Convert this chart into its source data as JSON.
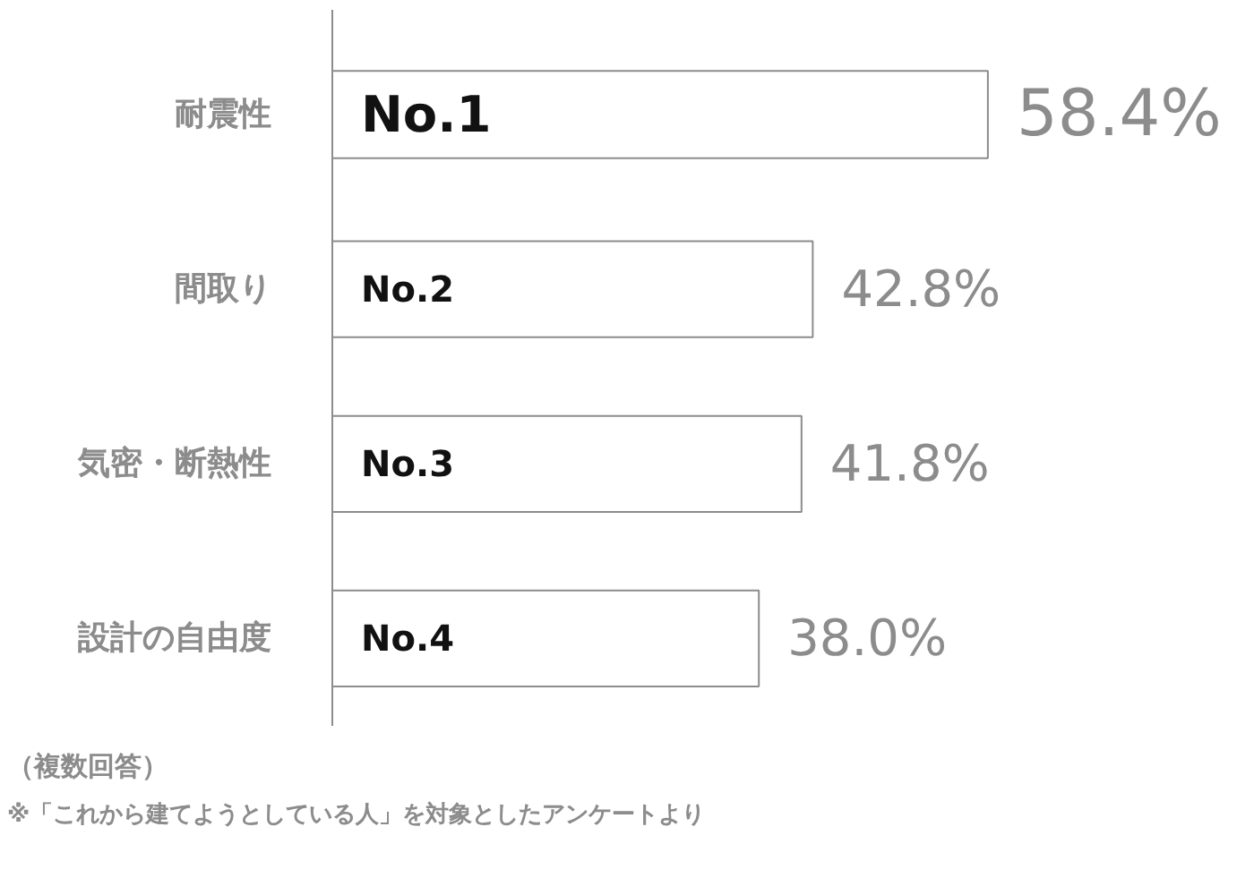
{
  "chart_data": {
    "type": "bar",
    "orientation": "horizontal",
    "categories": [
      "耐震性",
      "間取り",
      "気密・断熱性",
      "設計の自由度"
    ],
    "values": [
      58.4,
      42.8,
      41.8,
      38.0
    ],
    "value_labels": [
      "58.4%",
      "42.8%",
      "41.8%",
      "38.0%"
    ],
    "color": "#ffffff",
    "tick_labels": "y",
    "grid": false,
    "annotations": [
      "No.1",
      "No.2",
      "No.3",
      "No.4",
      "（複数回答）",
      "※「これから建てようとしている人」を対象としたアンケートより"
    ]
  }
}
